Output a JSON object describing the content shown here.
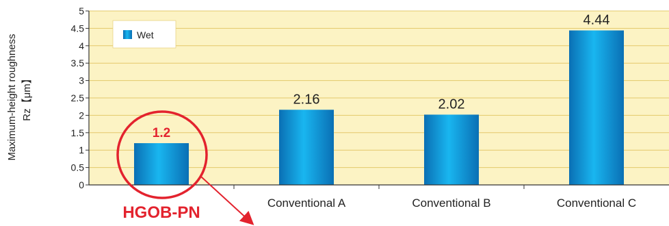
{
  "chart_data": {
    "type": "bar",
    "categories": [
      "HGOB-PN",
      "Conventional A",
      "Conventional B",
      "Conventional C"
    ],
    "series": [
      {
        "name": "Wet",
        "values": [
          1.2,
          2.16,
          2.02,
          4.44
        ]
      }
    ],
    "value_labels": [
      "1.2",
      "2.16",
      "2.02",
      "4.44"
    ],
    "title": "",
    "ylabel_line1": "Maximum-height roughness",
    "ylabel_line2": "Rz【μm】",
    "xlabel": "",
    "ylim": [
      0,
      5
    ],
    "yticks": [
      "0",
      "0.5",
      "1",
      "1.5",
      "2",
      "2.5",
      "3",
      "3.5",
      "4",
      "4.5",
      "5"
    ],
    "grid": true,
    "legend_position": "top-left",
    "highlight_category": "HGOB-PN",
    "colors": {
      "plot_background": "#FCF3C4",
      "gridline": "#E3C86A",
      "bar_light": "#19B6F0",
      "bar_dark": "#0A6FB4",
      "highlight": "#E3232E",
      "axis": "#333333",
      "text": "#222222"
    }
  }
}
